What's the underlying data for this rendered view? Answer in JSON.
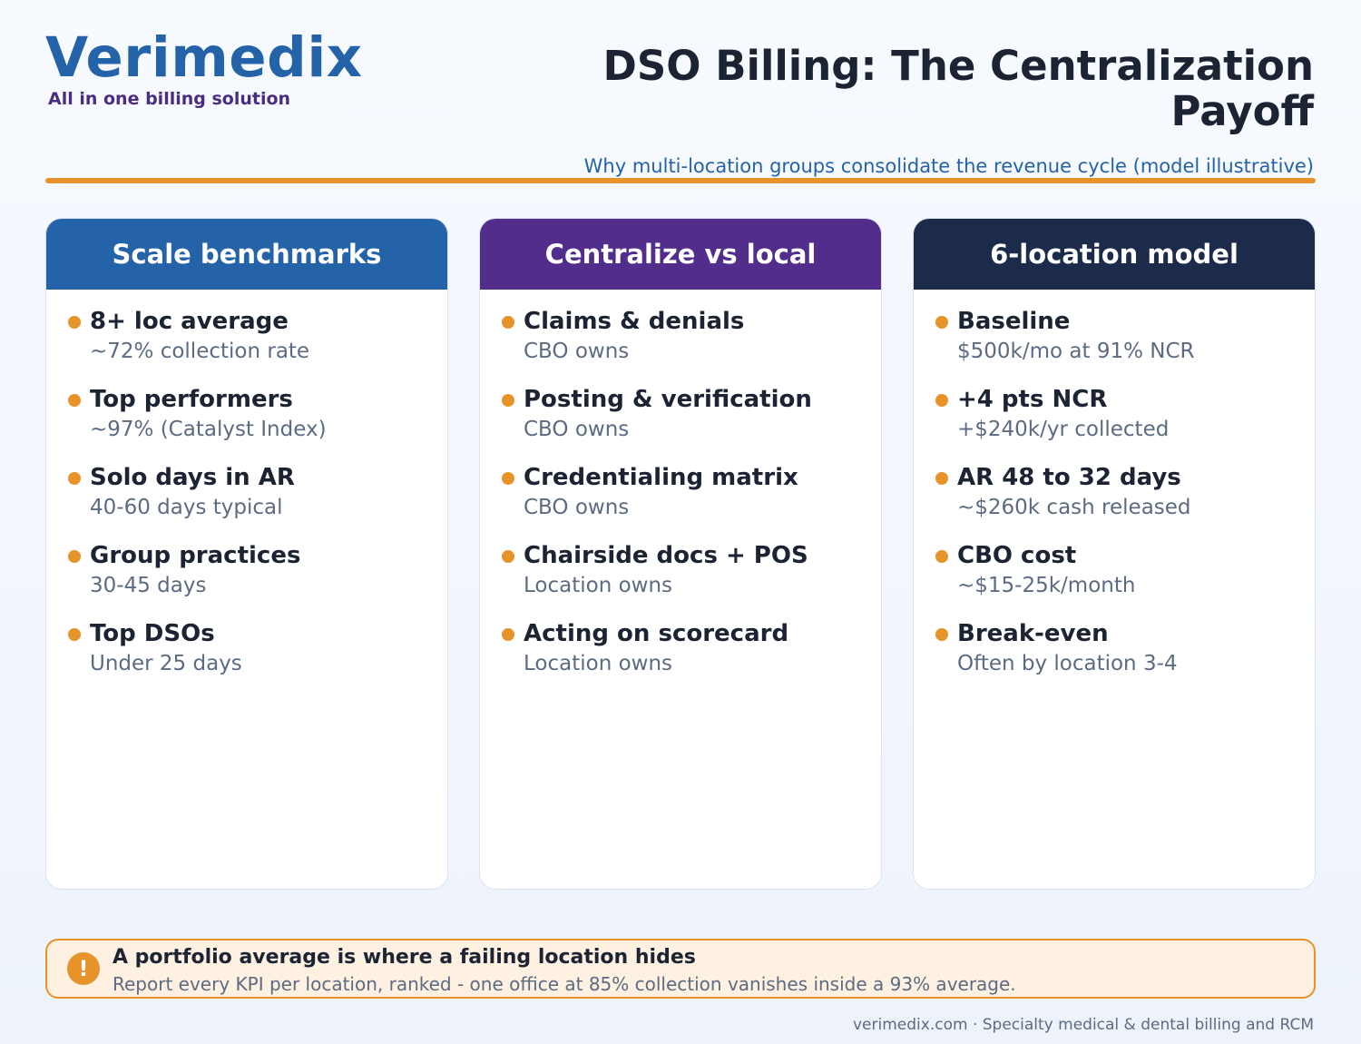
{
  "brand": {
    "name": "Verimedix",
    "tagline": "All in one billing solution"
  },
  "header": {
    "title": "DSO Billing: The Centralization Payoff",
    "subtitle": "Why multi-location groups consolidate the revenue cycle (model illustrative)"
  },
  "colors": {
    "blue": "#2563a8",
    "purple": "#522d8c",
    "navy": "#1c2b4a",
    "accent_orange": "#e8922a"
  },
  "cards": [
    {
      "title": "Scale benchmarks",
      "items": [
        {
          "title": "8+ loc average",
          "desc": "~72% collection rate"
        },
        {
          "title": "Top performers",
          "desc": "~97% (Catalyst Index)"
        },
        {
          "title": "Solo days in AR",
          "desc": "40-60 days typical"
        },
        {
          "title": "Group practices",
          "desc": "30-45 days"
        },
        {
          "title": "Top DSOs",
          "desc": "Under 25 days"
        }
      ]
    },
    {
      "title": "Centralize vs local",
      "items": [
        {
          "title": "Claims & denials",
          "desc": "CBO owns"
        },
        {
          "title": "Posting & verification",
          "desc": "CBO owns"
        },
        {
          "title": "Credentialing matrix",
          "desc": "CBO owns"
        },
        {
          "title": "Chairside docs + POS",
          "desc": "Location owns"
        },
        {
          "title": "Acting on scorecard",
          "desc": "Location owns"
        }
      ]
    },
    {
      "title": "6-location model",
      "items": [
        {
          "title": "Baseline",
          "desc": "$500k/mo at 91% NCR"
        },
        {
          "title": "+4 pts NCR",
          "desc": "+$240k/yr collected"
        },
        {
          "title": "AR 48 to 32 days",
          "desc": "~$260k cash released"
        },
        {
          "title": "CBO cost",
          "desc": "~$15-25k/month"
        },
        {
          "title": "Break-even",
          "desc": "Often by location 3-4"
        }
      ]
    }
  ],
  "callout": {
    "icon": "!",
    "icon_name": "warning-icon",
    "title": "A portfolio average is where a failing location hides",
    "text": "Report every KPI per location, ranked - one office at 85% collection vanishes inside a 93% average."
  },
  "footer": "verimedix.com · Specialty medical & dental billing and RCM"
}
